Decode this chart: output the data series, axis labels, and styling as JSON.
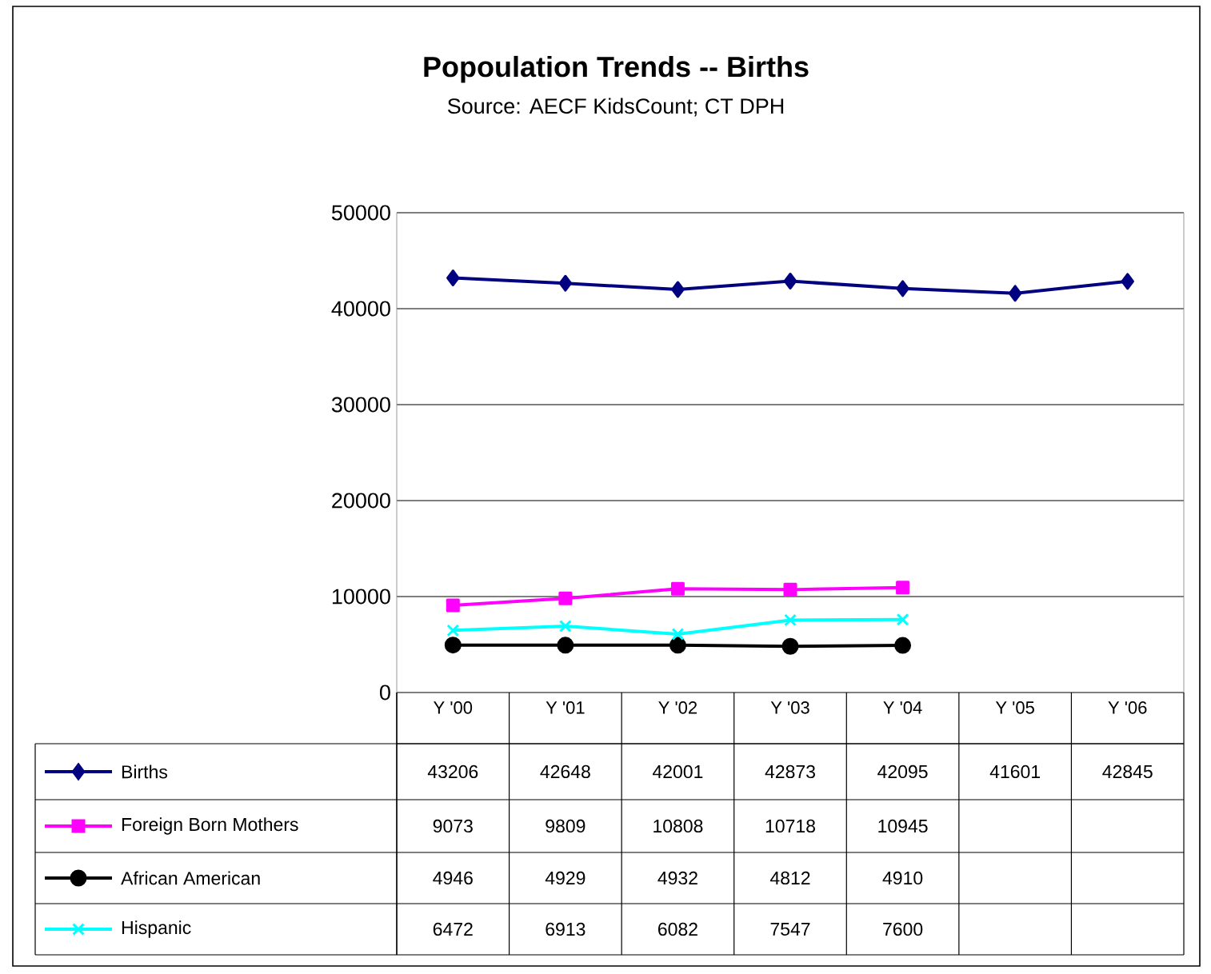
{
  "chart_data": {
    "type": "line",
    "title": "Popoulation Trends -- Births",
    "subtitle": "Source: AECF KidsCount; CT DPH",
    "categories": [
      "Y '00",
      "Y '01",
      "Y '02",
      "Y '03",
      "Y '04",
      "Y '05",
      "Y '06"
    ],
    "series": [
      {
        "name": "Births",
        "color": "#000080",
        "marker": "diamond",
        "values": [
          43206,
          42648,
          42001,
          42873,
          42095,
          41601,
          42845
        ]
      },
      {
        "name": "Foreign Born Mothers",
        "color": "#ff00ff",
        "marker": "square",
        "values": [
          9073,
          9809,
          10808,
          10718,
          10945,
          null,
          null
        ]
      },
      {
        "name": "African American",
        "color": "#000000",
        "marker": "circle",
        "values": [
          4946,
          4929,
          4932,
          4812,
          4910,
          null,
          null
        ]
      },
      {
        "name": "Hispanic",
        "color": "#00ffff",
        "marker": "cross",
        "values": [
          6472,
          6913,
          6082,
          7547,
          7600,
          null,
          null
        ]
      }
    ],
    "ylim": [
      0,
      50000
    ],
    "yticks": [
      0,
      10000,
      20000,
      30000,
      40000,
      50000
    ],
    "grid": "y",
    "legend": "bottom",
    "data_labels": true
  }
}
